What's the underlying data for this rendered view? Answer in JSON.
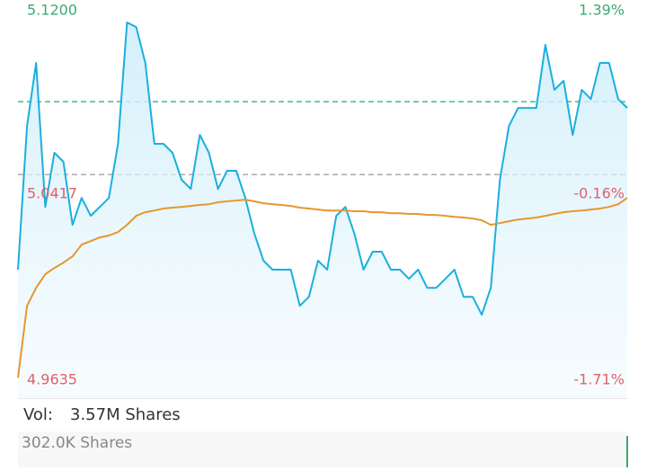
{
  "chart_data": {
    "type": "line",
    "ylim": [
      4.9635,
      5.12
    ],
    "yticks": [
      {
        "value": 5.12,
        "label": "5.1200"
      },
      {
        "value": 5.0417,
        "label": "5.0417"
      },
      {
        "value": 4.9635,
        "label": "4.9635"
      }
    ],
    "y2lim": [
      -1.71,
      1.39
    ],
    "y2ticks": [
      {
        "value": 1.39,
        "label": "1.39%"
      },
      {
        "value": -0.16,
        "label": "-0.16%"
      },
      {
        "value": -1.71,
        "label": "-1.71%"
      }
    ],
    "up_color": "#3aaa72",
    "down_color": "#e0606a",
    "reference_lines": [
      {
        "value": 5.0498,
        "color": "#aaaaaa"
      },
      {
        "value": 5.0799,
        "color": "#3cbf80"
      }
    ],
    "series": [
      {
        "color": "#1aafe0",
        "fill": true,
        "values": [
          5.0106,
          5.0699,
          5.0959,
          5.0365,
          5.0588,
          5.0551,
          5.0291,
          5.0402,
          5.0328,
          5.0365,
          5.0402,
          5.0625,
          5.1126,
          5.1107,
          5.0959,
          5.0625,
          5.0625,
          5.0588,
          5.0477,
          5.0439,
          5.0662,
          5.0588,
          5.0439,
          5.0514,
          5.0514,
          5.0402,
          5.0254,
          5.0143,
          5.0106,
          5.0106,
          5.0106,
          4.9957,
          4.9994,
          5.0143,
          5.0106,
          5.0328,
          5.0365,
          5.0254,
          5.0106,
          5.018,
          5.018,
          5.0106,
          5.0106,
          5.0068,
          5.0106,
          5.0031,
          5.0031,
          5.0068,
          5.0106,
          4.9994,
          4.9994,
          4.992,
          5.0031,
          5.0477,
          5.0699,
          5.0773,
          5.0773,
          5.0773,
          5.1033,
          5.0848,
          5.0885,
          5.0662,
          5.0848,
          5.081,
          5.0959,
          5.0959,
          5.081,
          5.0773
        ]
      },
      {
        "color": "#e8962e",
        "fill": false,
        "values": [
          4.966,
          4.9957,
          5.0031,
          5.0087,
          5.0113,
          5.0135,
          5.0161,
          5.0209,
          5.0224,
          5.0239,
          5.0247,
          5.0261,
          5.0291,
          5.0328,
          5.0343,
          5.035,
          5.0358,
          5.0362,
          5.0365,
          5.0369,
          5.0373,
          5.0376,
          5.0384,
          5.0388,
          5.0391,
          5.0395,
          5.0388,
          5.038,
          5.0376,
          5.0373,
          5.0369,
          5.0362,
          5.0358,
          5.0354,
          5.035,
          5.035,
          5.035,
          5.0347,
          5.0347,
          5.0343,
          5.0343,
          5.0339,
          5.0339,
          5.0336,
          5.0336,
          5.0332,
          5.0332,
          5.0328,
          5.0324,
          5.0321,
          5.0317,
          5.031,
          5.0291,
          5.0298,
          5.0306,
          5.0313,
          5.0317,
          5.0321,
          5.0328,
          5.0336,
          5.0343,
          5.0347,
          5.035,
          5.0354,
          5.0358,
          5.0365,
          5.0376,
          5.0402
        ]
      }
    ]
  },
  "volume": {
    "label": "Vol:",
    "total": "3.57M Shares",
    "scale_label": "302.0K Shares"
  }
}
